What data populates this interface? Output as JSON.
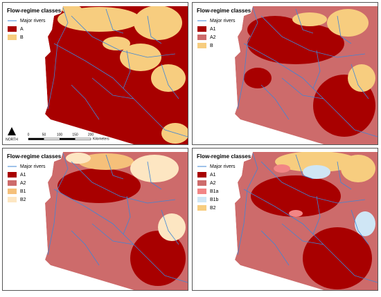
{
  "river_color": "#3f86d6",
  "panels": [
    {
      "legend_title": "Flow-regime classes",
      "rivers_label": "Major rivers",
      "items": [
        {
          "label": "A",
          "color": "#a80000"
        },
        {
          "label": "B",
          "color": "#f7cd7f"
        }
      ],
      "scale": {
        "ticks": [
          0,
          50,
          100,
          150,
          200
        ],
        "unit": "Kilometers"
      },
      "north": "NORTH"
    },
    {
      "legend_title": "Flow-regime classes",
      "rivers_label": "Major rivers",
      "items": [
        {
          "label": "A1",
          "color": "#a80000"
        },
        {
          "label": "A2",
          "color": "#cd6b6b"
        },
        {
          "label": "B",
          "color": "#f7cd7f"
        }
      ]
    },
    {
      "legend_title": "Flow-regime classes",
      "rivers_label": "Major rivers",
      "items": [
        {
          "label": "A1",
          "color": "#a80000"
        },
        {
          "label": "A2",
          "color": "#cd6b6b"
        },
        {
          "label": "B1",
          "color": "#f5c07a"
        },
        {
          "label": "B2",
          "color": "#fde6c2"
        }
      ]
    },
    {
      "legend_title": "Flow-regime classes",
      "rivers_label": "Major rivers",
      "items": [
        {
          "label": "A1",
          "color": "#a80000"
        },
        {
          "label": "A2",
          "color": "#cd6b6b"
        },
        {
          "label": "B1a",
          "color": "#f28585"
        },
        {
          "label": "B1b",
          "color": "#cfe6f5"
        },
        {
          "label": "B2",
          "color": "#f7cd7f"
        }
      ]
    }
  ]
}
